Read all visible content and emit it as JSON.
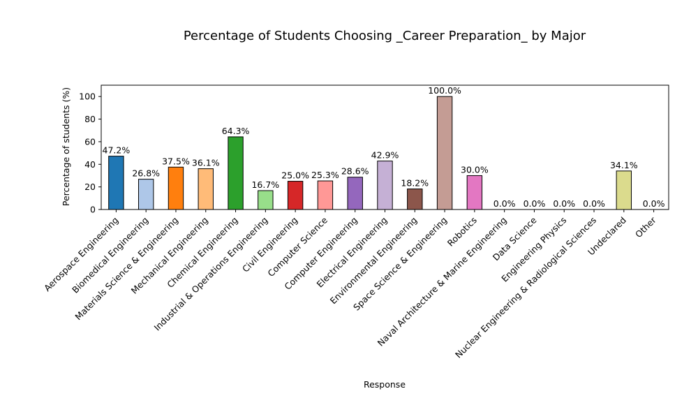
{
  "chart_data": {
    "type": "bar",
    "title": "Percentage of Students Choosing _Career Preparation_ by Major",
    "xlabel": "Response",
    "ylabel": "Percentage of students (%)",
    "ylim": [
      0,
      110
    ],
    "yticks": [
      0,
      20,
      40,
      60,
      80,
      100
    ],
    "grid": false,
    "categories": [
      "Aerospace Engineering",
      "Biomedical Engineering",
      "Materials Science & Engineering",
      "Mechanical Engineering",
      "Chemical Engineering",
      "Industrial & Operations Engineering",
      "Civil Engineering",
      "Computer Science",
      "Computer Engineering",
      "Electrical Engineering",
      "Environmental Engineering",
      "Space Science & Engineering",
      "Robotics",
      "Naval Architecture & Marine Engineering",
      "Data Science",
      "Engineering Physics",
      "Nuclear Engineering & Radiological Sciences",
      "Undeclared",
      "Other"
    ],
    "values": [
      47.2,
      26.8,
      37.5,
      36.1,
      64.3,
      16.7,
      25.0,
      25.3,
      28.6,
      42.9,
      18.2,
      100.0,
      30.0,
      0.0,
      0.0,
      0.0,
      0.0,
      34.1,
      0.0
    ],
    "data_labels": [
      "47.2%",
      "26.8%",
      "37.5%",
      "36.1%",
      "64.3%",
      "16.7%",
      "25.0%",
      "25.3%",
      "28.6%",
      "42.9%",
      "18.2%",
      "100.0%",
      "30.0%",
      "0.0%",
      "0.0%",
      "0.0%",
      "0.0%",
      "34.1%",
      "0.0%"
    ],
    "colors": [
      "#1f77b4",
      "#aec7e8",
      "#ff7f0e",
      "#ffbb78",
      "#2ca02c",
      "#98df8a",
      "#d62728",
      "#ff9896",
      "#9467bd",
      "#c5b0d5",
      "#8c564b",
      "#c49c94",
      "#e377c2",
      "#f7b6d2",
      "#7f7f7f",
      "#c7c7c7",
      "#bcbd22",
      "#dbdb8d",
      "#17becf"
    ],
    "bar_edge_color": "#000000"
  }
}
